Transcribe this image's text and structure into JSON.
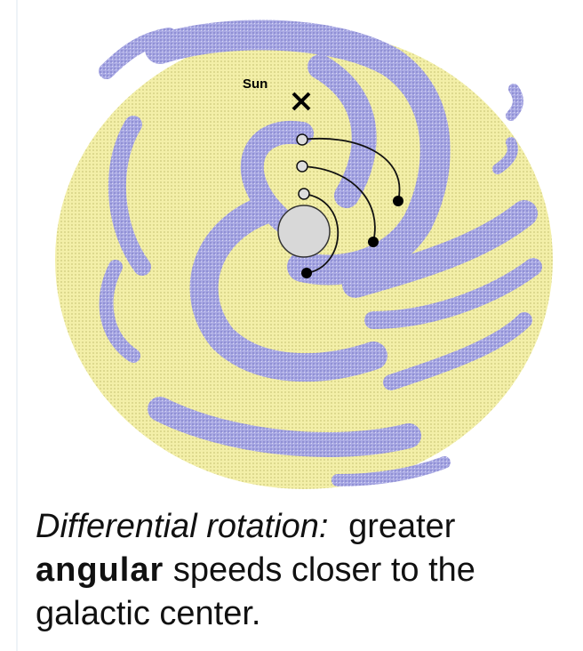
{
  "labels": {
    "sun": "Sun"
  },
  "caption": {
    "italic": "Differential rotation:",
    "text1": "greater",
    "bold": "angular",
    "text2": "speeds closer to the galactic center."
  }
}
